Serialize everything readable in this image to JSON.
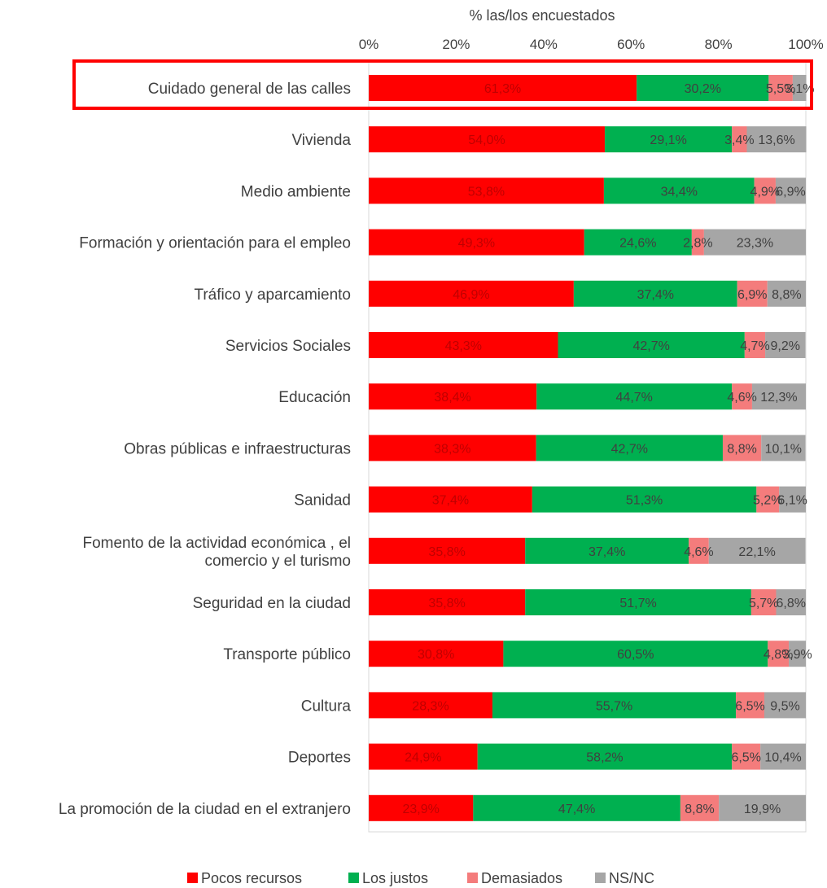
{
  "chart_data": {
    "type": "bar",
    "orientation": "horizontal",
    "stacked": true,
    "xlabel": "% las/los encuestados",
    "xlim": [
      0,
      100
    ],
    "xticks": [
      "0%",
      "20%",
      "40%",
      "60%",
      "80%",
      "100%"
    ],
    "legend_position": "bottom",
    "highlight_category": "Cuidado general de las calles",
    "categories": [
      "Cuidado general de las calles",
      "Vivienda",
      "Medio ambiente",
      "Formación y orientación para el empleo",
      "Tráfico y aparcamiento",
      "Servicios Sociales",
      "Educación",
      "Obras públicas e infraestructuras",
      "Sanidad",
      "Fomento de la actividad económica , el comercio y el turismo",
      "Seguridad en la ciudad",
      "Transporte público",
      "Cultura",
      "Deportes",
      "La promoción de la ciudad en el extranjero"
    ],
    "series": [
      {
        "name": "Pocos recursos",
        "color": "#ff0000",
        "label_color": "#c00000",
        "values": [
          61.3,
          54.0,
          53.8,
          49.3,
          46.9,
          43.3,
          38.4,
          38.3,
          37.4,
          35.8,
          35.8,
          30.8,
          28.3,
          24.9,
          23.9
        ],
        "labels": [
          "61,3%",
          "54,0%",
          "53,8%",
          "49,3%",
          "46,9%",
          "43,3%",
          "38,4%",
          "38,3%",
          "37,4%",
          "35,8%",
          "35,8%",
          "30,8%",
          "28,3%",
          "24,9%",
          "23,9%"
        ]
      },
      {
        "name": "Los justos",
        "color": "#00b050",
        "label_color": "#404040",
        "values": [
          30.2,
          29.1,
          34.4,
          24.6,
          37.4,
          42.7,
          44.7,
          42.7,
          51.3,
          37.4,
          51.7,
          60.5,
          55.7,
          58.2,
          47.4
        ],
        "labels": [
          "30,2%",
          "29,1%",
          "34,4%",
          "24,6%",
          "37,4%",
          "42,7%",
          "44,7%",
          "42,7%",
          "51,3%",
          "37,4%",
          "51,7%",
          "60,5%",
          "55,7%",
          "58,2%",
          "47,4%"
        ]
      },
      {
        "name": "Demasiados",
        "color": "#f47c7c",
        "label_color": "#404040",
        "values": [
          5.5,
          3.4,
          4.9,
          2.8,
          6.9,
          4.7,
          4.6,
          8.8,
          5.2,
          4.6,
          5.7,
          4.8,
          6.5,
          6.5,
          8.8
        ],
        "labels": [
          "5,5%",
          "3,4%",
          "4,9%",
          "2,8%",
          "6,9%",
          "4,7%",
          "4,6%",
          "8,8%",
          "5,2%",
          "4,6%",
          "5,7%",
          "4,8%",
          "6,5%",
          "6,5%",
          "8,8%"
        ]
      },
      {
        "name": "NS/NC",
        "color": "#a6a6a6",
        "label_color": "#404040",
        "values": [
          3.1,
          13.6,
          6.9,
          23.3,
          8.8,
          9.2,
          12.3,
          10.1,
          6.1,
          22.1,
          6.8,
          3.9,
          9.5,
          10.4,
          19.9
        ],
        "labels": [
          "3,1%",
          "13,6%",
          "6,9%",
          "23,3%",
          "8,8%",
          "9,2%",
          "12,3%",
          "10,1%",
          "6,1%",
          "22,1%",
          "6,8%",
          "3,9%",
          "9,5%",
          "10,4%",
          "19,9%"
        ]
      }
    ]
  }
}
